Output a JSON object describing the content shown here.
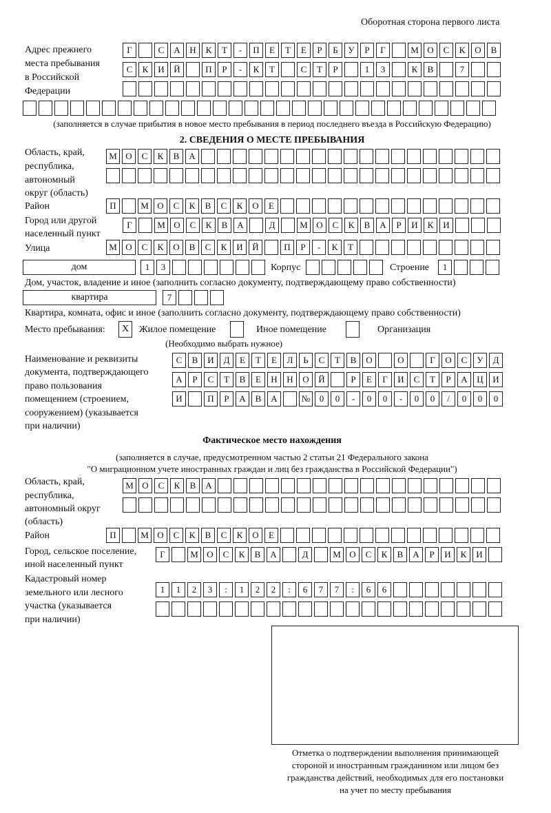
{
  "header": "Оборотная сторона первого листа",
  "prev": {
    "label": [
      "Адрес прежнего",
      "места пребывания",
      "в Российской",
      "Федерации"
    ],
    "rows": [
      "Г САНКТ-ПЕТЕРБУРГ МОСКОВ",
      "СКИЙ ПР-КТ СТР 13 КВ 7  ",
      "                        ",
      "                              "
    ],
    "note": "(заполняется в случае прибытия в новое место пребывания в период последнего въезда в Российскую Федерацию)"
  },
  "section2": {
    "title": "2. СВЕДЕНИЯ О МЕСТЕ ПРЕБЫВАНИЯ",
    "region_label": [
      "Область, край,",
      "республика,",
      "автономный",
      "округ (область)"
    ],
    "region_rows": [
      "МОСКВА                   ",
      "                         "
    ],
    "district_label": "Район",
    "district": "П МОСКВСКОЕ              ",
    "city_label": [
      "Город или другой",
      "населенный пункт"
    ],
    "city": "Г МОСКВА Д МОСКВАРИКИ   ",
    "street_label": "Улица",
    "street": "МОСКОВСКИЙ ПР-КТ         ",
    "house_type": "дом",
    "house": "13      ",
    "korpus_label": "Корпус",
    "korpus": "     ",
    "building_label": "Строение",
    "building": "1   ",
    "house_note": "Дом, участок, владение и иное (заполнить согласно документу, подтверждающему право собственности)",
    "flat_type": "квартира",
    "flat": "7   ",
    "flat_note": "Квартира, комната, офис и иное (заполнить согласно документу, подтверждающему право собственности)",
    "place_label": "Место пребывания:",
    "place_options": [
      {
        "mark": "X",
        "label": "Жилое помещение"
      },
      {
        "mark": "",
        "label": "Иное помещение"
      },
      {
        "mark": "",
        "label": "Организация"
      }
    ],
    "place_note": "(Необходимо выбрать нужное)",
    "doc_label": [
      "Наименование и реквизиты",
      "документа, подтверждающего",
      "право пользования",
      "помещением (строением,",
      "сооружением) (указывается",
      "при наличии)"
    ],
    "doc_rows": [
      "СВИДЕТЕЛЬСТВО О ГОСУД",
      "АРСТВЕННОЙ РЕГИСТРАЦИ",
      "И ПРАВА №00-00-00/000"
    ]
  },
  "actual": {
    "title": "Фактическое место нахождения",
    "note": [
      "(заполняется в случае, предусмотренном частью 2 статьи 21 Федерального закона",
      "\"О миграционном учете иностранных граждан и лиц без гражданства в Российской Федерации\")"
    ],
    "region_label": [
      "Область, край,",
      "республика,",
      "автономный округ",
      "(область)"
    ],
    "region_rows": [
      "МОСКВА                  ",
      "                        "
    ],
    "district_label": "Район",
    "district": "П МОСКВСКОЕ              ",
    "city_label": [
      "Город, сельское поселение,",
      "иной населенный пункт"
    ],
    "city": "Г МОСКВА Д МОСКВАРИКИ ",
    "cadastre_label": [
      "Кадастровый номер",
      "земельного или лесного",
      "участка (указывается",
      "при наличии)"
    ],
    "cadastre_rows": [
      "1123:122:677:66       ",
      "                      "
    ]
  },
  "stamp_caption": [
    "Отметка о подтверждении выполнения принимающей",
    "стороной и иностранным гражданином или лицом без",
    "гражданства действий, необходимых для его постановки",
    "на учет по месту пребывания"
  ]
}
